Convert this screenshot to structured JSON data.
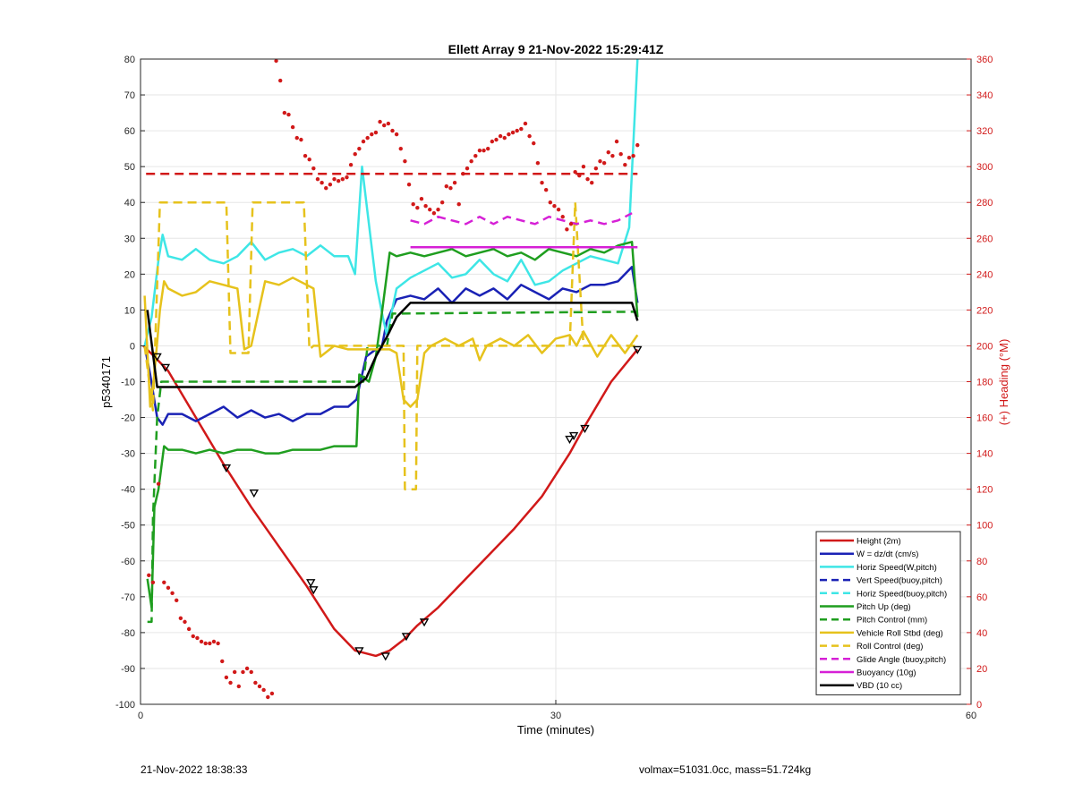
{
  "chart_data": {
    "type": "line",
    "title": "Ellett Array 9 21-Nov-2022 15:29:41Z",
    "xlabel": "Time (minutes)",
    "ylabel_left": "p5340171",
    "ylabel_right": "(+) Heading (°M)",
    "xlim": [
      0,
      60
    ],
    "ylim_left": [
      -100,
      80
    ],
    "ylim_right": [
      0,
      360
    ],
    "xticks": [
      "0",
      "30",
      "60"
    ],
    "yticks_left": [
      "80",
      "70",
      "60",
      "50",
      "40",
      "30",
      "20",
      "10",
      "0",
      "-10",
      "-20",
      "-30",
      "-40",
      "-50",
      "-60",
      "-70",
      "-80",
      "-90",
      "-100"
    ],
    "yticks_right": [
      "360",
      "340",
      "320",
      "300",
      "280",
      "260",
      "240",
      "220",
      "200",
      "180",
      "160",
      "140",
      "120",
      "100",
      "80",
      "60",
      "40",
      "20",
      "0"
    ],
    "grid": true,
    "legend_position": "bottom-right",
    "colors": {
      "red": "#d11919",
      "blue": "#1a22b5",
      "cyan": "#3ee6e6",
      "green": "#1f9e1f",
      "yellow": "#e6c21c",
      "magenta": "#d620d6",
      "black": "#000000"
    },
    "legend": [
      {
        "label": "Height (2m)",
        "color": "#d11919",
        "style": "solid"
      },
      {
        "label": "W = dz/dt (cm/s)",
        "color": "#1a22b5",
        "style": "solid"
      },
      {
        "label": "Horiz Speed(W,pitch)",
        "color": "#3ee6e6",
        "style": "solid"
      },
      {
        "label": "Vert Speed(buoy,pitch)",
        "color": "#1a22b5",
        "style": "dashed"
      },
      {
        "label": "Horiz Speed(buoy,pitch)",
        "color": "#3ee6e6",
        "style": "dashed"
      },
      {
        "label": "Pitch Up (deg)",
        "color": "#1f9e1f",
        "style": "solid"
      },
      {
        "label": "Pitch Control (mm)",
        "color": "#1f9e1f",
        "style": "dashed"
      },
      {
        "label": "Vehicle Roll Stbd (deg)",
        "color": "#e6c21c",
        "style": "solid"
      },
      {
        "label": "Roll Control (deg)",
        "color": "#e6c21c",
        "style": "dashed"
      },
      {
        "label": "Glide Angle (buoy,pitch)",
        "color": "#d620d6",
        "style": "dashed"
      },
      {
        "label": "Buoyancy (10g)",
        "color": "#d620d6",
        "style": "solid"
      },
      {
        "label": "VBD (10 cc)",
        "color": "#000000",
        "style": "solid"
      }
    ],
    "series": [
      {
        "name": "Height (2m)",
        "color": "#d11919",
        "style": "solid",
        "axis": "left",
        "x": [
          0.2,
          1,
          2,
          4,
          6,
          8,
          10,
          12,
          14,
          15.5,
          17,
          18,
          19,
          20,
          21.5,
          24,
          27,
          29,
          31,
          32,
          34,
          35.9
        ],
        "y": [
          0,
          -3,
          -7,
          -20,
          -33,
          -45,
          -56,
          -67,
          -79,
          -85,
          -86.5,
          -85,
          -82,
          -78,
          -73,
          -63,
          -51,
          -42,
          -30,
          -23,
          -10,
          -1
        ]
      },
      {
        "name": "W = dz/dt (cm/s)",
        "color": "#1a22b5",
        "style": "solid",
        "axis": "left",
        "x": [
          0.3,
          0.7,
          1.2,
          1.6,
          2,
          3,
          4,
          5,
          6,
          7,
          8,
          9,
          10,
          11,
          12,
          13,
          14,
          15,
          15.6,
          16.3,
          17,
          17.4,
          17.8,
          18.5,
          19.5,
          20.5,
          21.5,
          22.5,
          23.5,
          24.5,
          25.5,
          26.5,
          27.5,
          28.5,
          29.5,
          30.5,
          31.5,
          32.5,
          33.5,
          34.5,
          35.5,
          35.9
        ],
        "y": [
          0,
          -8,
          -20,
          -22,
          -19,
          -19,
          -21,
          -19,
          -17,
          -20,
          -18,
          -20,
          -19,
          -21,
          -19,
          -19,
          -17,
          -17,
          -15,
          -3,
          -1,
          -1,
          7,
          13,
          14,
          13,
          16,
          12,
          16,
          14,
          16,
          13,
          17,
          15,
          13,
          16,
          15,
          17,
          17,
          18,
          22,
          12
        ]
      },
      {
        "name": "Horiz Speed(W,pitch)",
        "color": "#3ee6e6",
        "style": "solid",
        "axis": "left",
        "x": [
          0.3,
          0.8,
          1.3,
          1.6,
          2,
          3,
          4,
          5,
          6,
          7,
          8,
          9,
          10,
          11,
          12,
          13,
          14,
          15,
          15.5,
          16,
          17,
          17.5,
          17.8,
          18.5,
          19.5,
          20.5,
          21.5,
          22.5,
          23.5,
          24.5,
          25.5,
          26.5,
          27.5,
          28.5,
          29.5,
          30.5,
          31.5,
          32.5,
          33.5,
          34.5,
          35.3,
          35.9
        ],
        "y": [
          0,
          8,
          24,
          31,
          25,
          24,
          27,
          24,
          23,
          25,
          29,
          24,
          26,
          27,
          25,
          28,
          25,
          25,
          20,
          50,
          18,
          8,
          3,
          16,
          19,
          21,
          23,
          19,
          20,
          24,
          20,
          18,
          24,
          17,
          18,
          21,
          23,
          25,
          24,
          23,
          33,
          80
        ]
      },
      {
        "name": "Pitch Up (deg)",
        "color": "#1f9e1f",
        "style": "solid",
        "axis": "left",
        "x": [
          0.5,
          0.8,
          1.0,
          1.3,
          1.7,
          2,
          3,
          4,
          5,
          6,
          7,
          8,
          9,
          10,
          11,
          12,
          13,
          14,
          15,
          15.6,
          15.8,
          16.5,
          17,
          17.4,
          18,
          18.5,
          19.5,
          20.5,
          21.5,
          22.5,
          23.5,
          24.5,
          25.5,
          26.5,
          27.5,
          28.5,
          29.5,
          30.5,
          31.5,
          32.5,
          33.5,
          34.5,
          35.5,
          35.9
        ],
        "y": [
          -65,
          -73,
          -45,
          -40,
          -28,
          -29,
          -29,
          -30,
          -29,
          -30,
          -29,
          -29,
          -30,
          -30,
          -29,
          -29,
          -29,
          -28,
          -28,
          -28,
          -8,
          -10,
          -3,
          8,
          26,
          25,
          26,
          25,
          26,
          27,
          25,
          26,
          27,
          25,
          26,
          24,
          27,
          26,
          25,
          27,
          26,
          28,
          29,
          8
        ]
      },
      {
        "name": "Pitch Control (mm)",
        "color": "#1f9e1f",
        "style": "dashed",
        "axis": "left",
        "x": [
          0.5,
          0.8,
          0.9,
          1.2,
          1.5,
          2,
          15.5,
          16.1,
          16.4,
          17.2,
          17.8,
          18.2,
          35.5,
          35.9
        ],
        "y": [
          -77,
          -77,
          -48,
          -20,
          -10,
          -10,
          -10,
          -10,
          0,
          0,
          0,
          9,
          9.5,
          9.5
        ]
      },
      {
        "name": "Vehicle Roll Stbd (deg)",
        "color": "#e6c21c",
        "style": "solid",
        "axis": "left",
        "x": [
          0.3,
          0.7,
          1.0,
          1.4,
          1.7,
          2,
          3,
          4,
          5,
          6,
          7,
          7.5,
          8,
          9,
          10,
          11,
          12,
          12.5,
          13,
          14,
          15,
          16,
          17,
          18,
          18.5,
          19,
          19.5,
          20,
          20.5,
          21,
          22,
          23,
          24,
          24.5,
          25,
          26,
          27,
          28,
          29,
          30,
          31,
          31.5,
          32,
          33,
          34,
          35,
          35.9
        ],
        "y": [
          14,
          -17,
          -8,
          10,
          18,
          16,
          14,
          15,
          18,
          17,
          16,
          -1,
          0,
          18,
          17,
          19,
          17,
          16,
          -3,
          0,
          -1,
          -1,
          -1,
          -1,
          -2,
          -15,
          -17,
          -15,
          -2,
          0,
          2,
          0,
          2,
          -4,
          0,
          2,
          0,
          3,
          -2,
          2,
          3,
          0,
          4,
          -3,
          3,
          -2,
          3
        ]
      },
      {
        "name": "Roll Control (deg)",
        "color": "#e6c21c",
        "style": "dashed",
        "axis": "left",
        "x": [
          0.3,
          0.9,
          1.4,
          1.7,
          2,
          6.2,
          6.5,
          7.2,
          7.8,
          8.1,
          11.8,
          12.2,
          12.5,
          19.0,
          19.1,
          19.3,
          19.9,
          20.0,
          20.2,
          31.0,
          31.4,
          32.0,
          35.9
        ],
        "y": [
          0,
          -18,
          40,
          40,
          40,
          40,
          -2,
          -2,
          -2,
          40,
          40,
          -1,
          0,
          0,
          -40,
          -40,
          -40,
          0,
          0,
          0,
          40,
          0,
          0
        ]
      },
      {
        "name": "Glide Angle (buoy,pitch)",
        "color": "#d620d6",
        "style": "dashed",
        "axis": "left",
        "x": [
          19.5,
          20.5,
          21.5,
          22.5,
          23.5,
          24.5,
          25.5,
          26.5,
          27.5,
          28.5,
          29.5,
          30.5,
          31.5,
          32.5,
          33.5,
          34.5,
          35.5
        ],
        "y": [
          35,
          34,
          36,
          35,
          34,
          36,
          34,
          36,
          35,
          34,
          36,
          35,
          34,
          35,
          34,
          35,
          37
        ]
      },
      {
        "name": "Buoyancy (10g)",
        "color": "#d620d6",
        "style": "solid",
        "axis": "left",
        "x": [
          19.5,
          35.9
        ],
        "y": [
          27.5,
          27.5
        ]
      },
      {
        "name": "VBD (10 cc)",
        "color": "#000000",
        "style": "solid",
        "axis": "left",
        "x": [
          0.5,
          1.2,
          2,
          15.5,
          16.3,
          17.0,
          17.8,
          18.5,
          19.5,
          35.5,
          35.9
        ],
        "y": [
          10,
          -11.5,
          -11.5,
          -11.5,
          -9,
          -3,
          2.5,
          8,
          12,
          12,
          7
        ]
      },
      {
        "name": "Horizontal Red Dashed",
        "color": "#d11919",
        "style": "dashed",
        "axis": "left",
        "x": [
          0.4,
          35.9
        ],
        "y": [
          48,
          48
        ]
      }
    ],
    "heading_points": {
      "color": "#d11919",
      "axis": "right",
      "x": [
        0.6,
        0.9,
        1.3,
        1.7,
        2.0,
        2.3,
        2.6,
        2.9,
        3.2,
        3.5,
        3.8,
        4.1,
        4.4,
        4.7,
        5.0,
        5.3,
        5.6,
        5.9,
        6.2,
        6.5,
        6.8,
        7.1,
        7.4,
        7.7,
        8.0,
        8.3,
        8.6,
        8.9,
        9.2,
        9.5,
        9.8,
        10.1,
        10.4,
        10.7,
        11.0,
        11.3,
        11.6,
        11.9,
        12.2,
        12.5,
        12.8,
        13.1,
        13.4,
        13.7,
        14.0,
        14.3,
        14.6,
        14.9,
        15.2,
        15.5,
        15.8,
        16.1,
        16.4,
        16.7,
        17.0,
        17.3,
        17.6,
        17.9,
        18.2,
        18.5,
        18.8,
        19.1,
        19.4,
        19.7,
        20.0,
        20.3,
        20.6,
        20.9,
        21.2,
        21.5,
        21.8,
        22.1,
        22.4,
        22.7,
        23.0,
        23.3,
        23.6,
        23.9,
        24.2,
        24.5,
        24.8,
        25.1,
        25.4,
        25.7,
        26.0,
        26.3,
        26.6,
        26.9,
        27.2,
        27.5,
        27.8,
        28.1,
        28.4,
        28.7,
        29.0,
        29.3,
        29.6,
        29.9,
        30.2,
        30.5,
        30.8,
        31.1,
        31.4,
        31.7,
        32.0,
        32.3,
        32.6,
        32.9,
        33.2,
        33.5,
        33.8,
        34.1,
        34.4,
        34.7,
        35.0,
        35.3,
        35.6,
        35.9
      ],
      "y": [
        72,
        68,
        123,
        68,
        65,
        62,
        58,
        48,
        46,
        42,
        38,
        37,
        35,
        34,
        34,
        35,
        34,
        24,
        15,
        12,
        18,
        10,
        18,
        20,
        18,
        12,
        10,
        8,
        4,
        6,
        359,
        348,
        330,
        329,
        322,
        316,
        315,
        306,
        304,
        299,
        293,
        291,
        288,
        290,
        293,
        292,
        293,
        294,
        301,
        307,
        310,
        314,
        316,
        318,
        319,
        325,
        323,
        324,
        320,
        318,
        310,
        303,
        290,
        279,
        277,
        282,
        278,
        276,
        274,
        276,
        280,
        289,
        288,
        291,
        279,
        296,
        299,
        303,
        306,
        309,
        309,
        310,
        314,
        315,
        317,
        316,
        318,
        319,
        320,
        321,
        324,
        317,
        313,
        302,
        291,
        287,
        280,
        278,
        276,
        272,
        265,
        268,
        297,
        295,
        300,
        293,
        291,
        299,
        303,
        302,
        308,
        306,
        314,
        307,
        301,
        305,
        306,
        312
      ]
    },
    "height_markers": {
      "x": [
        1.2,
        1.8,
        6.2,
        8.2,
        12.3,
        12.5,
        15.8,
        17.7,
        19.2,
        20.5,
        31.0,
        31.3,
        32.1,
        35.9
      ],
      "y": [
        -3,
        -6,
        -34,
        -41,
        -66,
        -68,
        -85,
        -86.5,
        -81,
        -77,
        -26,
        -25,
        -23,
        -1
      ]
    }
  },
  "footer": {
    "left": "21-Nov-2022 18:38:33",
    "right": "volmax=51031.0cc, mass=51.724kg"
  }
}
